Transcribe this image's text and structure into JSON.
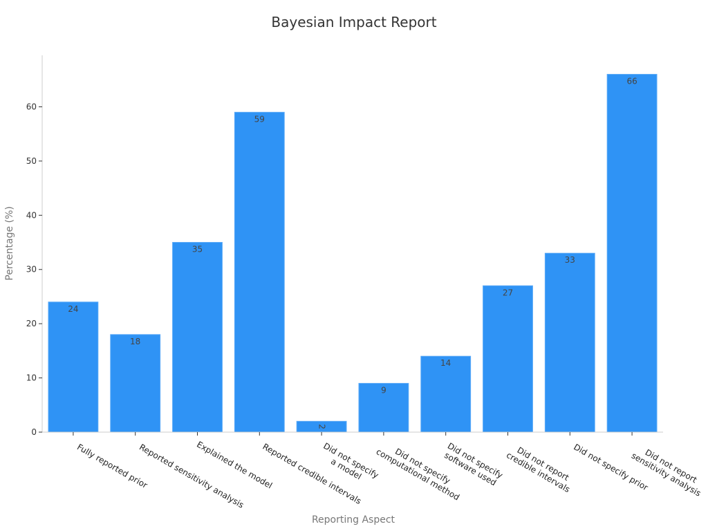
{
  "chart_data": {
    "type": "bar",
    "title": "Bayesian Impact Report",
    "xlabel": "Reporting Aspect",
    "ylabel": "Percentage (%)",
    "ylim": [
      0,
      69.5
    ],
    "yticks": [
      0,
      10,
      20,
      30,
      40,
      50,
      60
    ],
    "grid": false,
    "bar_color": "#2f93f5",
    "categories": [
      "Fully reported prior",
      "Reported sensitivity analysis",
      "Explained the model",
      "Reported credible intervals",
      "Did not specify\na model",
      "Did not specify\ncomputational method",
      "Did not specify\nsoftware used",
      "Did not report\ncredible intervals",
      "Did not specify prior",
      "Did not report\nsensitivity analysis"
    ],
    "values": [
      24,
      18,
      35,
      59,
      2,
      9,
      14,
      27,
      33,
      66
    ]
  }
}
